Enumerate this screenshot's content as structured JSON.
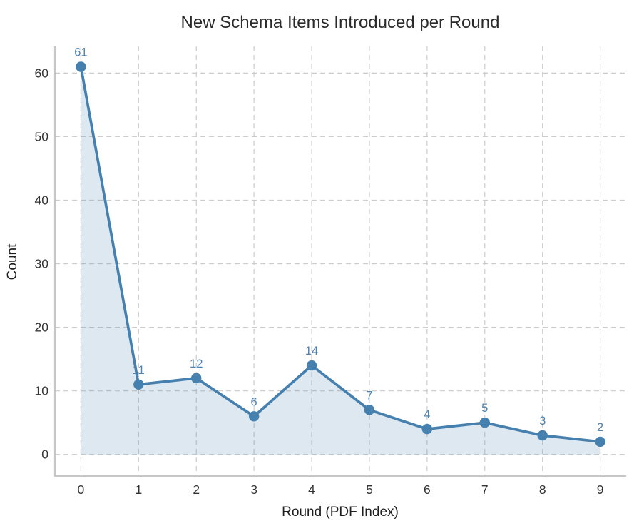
{
  "chart_data": {
    "type": "line",
    "title": "New Schema Items Introduced per Round",
    "xlabel": "Round (PDF Index)",
    "ylabel": "Count",
    "x": [
      0,
      1,
      2,
      3,
      4,
      5,
      6,
      7,
      8,
      9
    ],
    "values": [
      61,
      11,
      12,
      6,
      14,
      7,
      4,
      5,
      3,
      2
    ],
    "point_labels": [
      "61",
      "11",
      "12",
      "6",
      "14",
      "7",
      "4",
      "5",
      "3",
      "2"
    ],
    "xticks": [
      "0",
      "1",
      "2",
      "3",
      "4",
      "5",
      "6",
      "7",
      "8",
      "9"
    ],
    "yticks": [
      0,
      10,
      20,
      30,
      40,
      50,
      60
    ],
    "xlim": [
      -0.45,
      9.45
    ],
    "ylim": [
      -3.4,
      64.2
    ],
    "grid": true,
    "grid_style": "dashed",
    "legend": "none",
    "marker": "circle",
    "area_fill_to_zero": true,
    "colors": {
      "line": "#4580af",
      "marker": "#4580af",
      "area": "rgba(70,130,180,0.18)",
      "data_label": "#4e84b2",
      "grid": "#cccccc",
      "spine": "#c6c6c6",
      "title": "#2b2b2b",
      "tick": "#333333",
      "axis_label": "#1f1f1f"
    }
  }
}
